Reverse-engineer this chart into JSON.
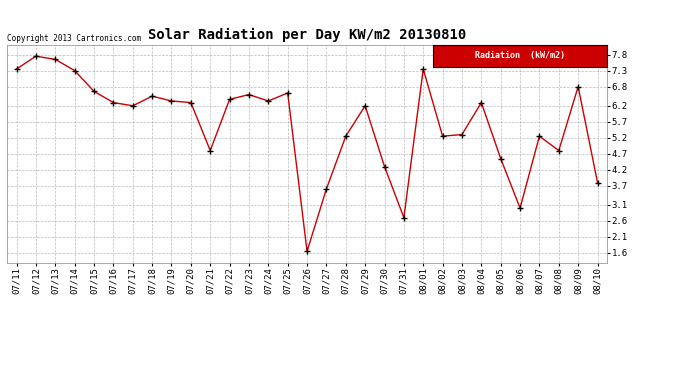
{
  "title": "Solar Radiation per Day KW/m2 20130810",
  "copyright": "Copyright 2013 Cartronics.com",
  "legend_label": "Radiation  (kW/m2)",
  "dates": [
    "07/11",
    "07/12",
    "07/13",
    "07/14",
    "07/15",
    "07/16",
    "07/17",
    "07/18",
    "07/19",
    "07/20",
    "07/21",
    "07/22",
    "07/23",
    "07/24",
    "07/25",
    "07/26",
    "07/27",
    "07/28",
    "07/29",
    "07/30",
    "07/31",
    "08/01",
    "08/02",
    "08/03",
    "08/04",
    "08/05",
    "08/06",
    "08/07",
    "08/08",
    "08/09",
    "08/10"
  ],
  "values": [
    7.35,
    7.75,
    7.65,
    7.3,
    6.65,
    6.3,
    6.2,
    6.5,
    6.35,
    6.3,
    4.8,
    6.4,
    6.55,
    6.35,
    6.6,
    1.65,
    3.6,
    5.25,
    6.2,
    4.3,
    2.7,
    7.35,
    5.25,
    5.3,
    6.3,
    4.55,
    3.0,
    5.25,
    4.8,
    6.8,
    3.8
  ],
  "yticks": [
    1.6,
    2.1,
    2.6,
    3.1,
    3.7,
    4.2,
    4.7,
    5.2,
    5.7,
    6.2,
    6.8,
    7.3,
    7.8
  ],
  "ylim": [
    1.3,
    8.1
  ],
  "line_color": "#cc0000",
  "marker_color": "#000000",
  "bg_color": "#ffffff",
  "grid_color": "#aaaaaa",
  "title_fontsize": 10,
  "tick_fontsize": 6.5,
  "legend_bg": "#cc0000",
  "legend_text_color": "#ffffff"
}
